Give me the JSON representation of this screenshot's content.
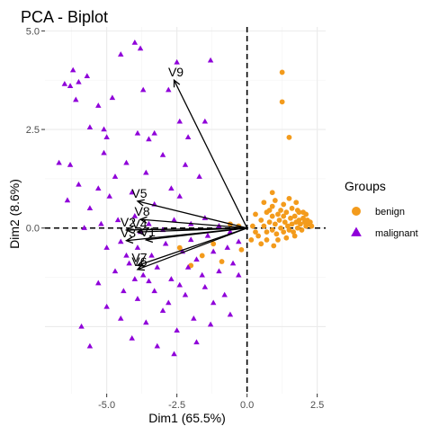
{
  "chart_data": {
    "type": "scatter",
    "title": "PCA - Biplot",
    "xlabel": "Dim1 (65.5%)",
    "ylabel": "Dim2 (8.6%)",
    "xlim": [
      -7.2,
      2.8
    ],
    "ylim": [
      -4.2,
      5.1
    ],
    "xticks": [
      -5.0,
      -2.5,
      0.0,
      2.5
    ],
    "xtick_labels": [
      "-5.0",
      "-2.5",
      "0.0",
      "2.5"
    ],
    "yticks": [
      0.0,
      2.5,
      5.0
    ],
    "ytick_labels": [
      "0.0",
      "2.5",
      "5.0"
    ],
    "grid": true,
    "legend": {
      "title": "Groups",
      "position": "right",
      "entries": [
        {
          "label": "benign",
          "color": "#F39B1C",
          "marker": "circle"
        },
        {
          "label": "malignant",
          "color": "#8F00D9",
          "marker": "triangle"
        }
      ]
    },
    "reference_lines": {
      "x": 0,
      "y": 0,
      "style": "dashed"
    },
    "series": [
      {
        "name": "benign",
        "color": "#F39B1C",
        "marker": "circle",
        "points": [
          [
            1.25,
            3.95
          ],
          [
            1.25,
            3.2
          ],
          [
            1.5,
            2.3
          ],
          [
            0.9,
            0.3
          ],
          [
            1.1,
            0.35
          ],
          [
            1.3,
            0.6
          ],
          [
            0.6,
            0.05
          ],
          [
            0.7,
            -0.1
          ],
          [
            0.8,
            0.15
          ],
          [
            0.9,
            -0.05
          ],
          [
            1.0,
            0.1
          ],
          [
            1.05,
            -0.15
          ],
          [
            1.15,
            0.2
          ],
          [
            1.2,
            0.0
          ],
          [
            1.3,
            -0.1
          ],
          [
            1.35,
            0.15
          ],
          [
            1.45,
            0.05
          ],
          [
            1.5,
            -0.05
          ],
          [
            1.55,
            0.25
          ],
          [
            1.6,
            0.1
          ],
          [
            1.65,
            -0.1
          ],
          [
            1.7,
            0.3
          ],
          [
            1.75,
            0.15
          ],
          [
            1.8,
            0.0
          ],
          [
            1.85,
            0.2
          ],
          [
            1.9,
            0.1
          ],
          [
            1.95,
            -0.05
          ],
          [
            2.0,
            0.25
          ],
          [
            2.05,
            0.15
          ],
          [
            2.1,
            0.05
          ],
          [
            2.15,
            0.2
          ],
          [
            2.2,
            0.1
          ],
          [
            2.25,
            0.15
          ],
          [
            2.3,
            0.05
          ],
          [
            1.4,
            0.4
          ],
          [
            1.6,
            0.5
          ],
          [
            1.8,
            0.45
          ],
          [
            2.0,
            0.4
          ],
          [
            0.4,
            -0.2
          ],
          [
            0.5,
            0.2
          ],
          [
            0.5,
            -0.4
          ],
          [
            0.7,
            -0.3
          ],
          [
            0.3,
            -0.1
          ],
          [
            0.2,
            0.05
          ],
          [
            1.1,
            -0.3
          ],
          [
            1.4,
            -0.25
          ],
          [
            1.7,
            -0.2
          ],
          [
            0.9,
            0.55
          ],
          [
            0.7,
            0.4
          ],
          [
            1.2,
            0.45
          ],
          [
            1.0,
            0.7
          ],
          [
            0.6,
            0.65
          ],
          [
            0.9,
            0.9
          ],
          [
            1.5,
            0.75
          ],
          [
            1.75,
            0.65
          ],
          [
            0.95,
            -0.45
          ],
          [
            0.3,
            0.35
          ],
          [
            -0.2,
            -0.55
          ],
          [
            -0.3,
            0.05
          ],
          [
            -0.9,
            -0.85
          ],
          [
            -1.6,
            -0.7
          ],
          [
            -2.0,
            -0.95
          ],
          [
            -2.4,
            -0.5
          ],
          [
            -1.2,
            -0.4
          ],
          [
            -0.6,
            0.1
          ],
          [
            0.15,
            -0.3
          ],
          [
            1.3,
            0.3
          ],
          [
            1.85,
            0.4
          ],
          [
            2.1,
            0.35
          ],
          [
            0.8,
            0.45
          ]
        ]
      },
      {
        "name": "malignant",
        "color": "#8F00D9",
        "marker": "triangle",
        "points": [
          [
            -4.0,
            4.7
          ],
          [
            -3.8,
            4.55
          ],
          [
            -4.5,
            4.4
          ],
          [
            -6.2,
            4.0
          ],
          [
            -5.7,
            3.85
          ],
          [
            -6.0,
            3.7
          ],
          [
            -2.5,
            4.2
          ],
          [
            -1.3,
            4.25
          ],
          [
            -6.5,
            3.65
          ],
          [
            -6.3,
            3.6
          ],
          [
            -6.1,
            3.25
          ],
          [
            -5.3,
            3.1
          ],
          [
            -4.8,
            3.3
          ],
          [
            -3.7,
            3.5
          ],
          [
            -2.8,
            3.5
          ],
          [
            -5.6,
            2.55
          ],
          [
            -5.1,
            2.5
          ],
          [
            -2.4,
            2.7
          ],
          [
            -1.5,
            2.7
          ],
          [
            -3.9,
            2.4
          ],
          [
            -3.3,
            2.4
          ],
          [
            -2.1,
            2.3
          ],
          [
            -3.5,
            2.25
          ],
          [
            -5.0,
            2.3
          ],
          [
            -5.1,
            1.9
          ],
          [
            -4.3,
            1.65
          ],
          [
            -3.0,
            1.85
          ],
          [
            -2.2,
            1.6
          ],
          [
            -6.3,
            1.6
          ],
          [
            -6.7,
            1.65
          ],
          [
            -6.0,
            1.1
          ],
          [
            -5.3,
            1.0
          ],
          [
            -4.7,
            1.3
          ],
          [
            -3.6,
            1.4
          ],
          [
            -2.7,
            1.0
          ],
          [
            -1.7,
            1.3
          ],
          [
            -6.4,
            0.7
          ],
          [
            -5.6,
            0.5
          ],
          [
            -4.9,
            0.8
          ],
          [
            -4.1,
            0.9
          ],
          [
            -3.3,
            0.6
          ],
          [
            -2.4,
            0.8
          ],
          [
            -5.8,
            0.0
          ],
          [
            -5.2,
            0.1
          ],
          [
            -4.6,
            0.2
          ],
          [
            -4.0,
            0.3
          ],
          [
            -3.5,
            0.1
          ],
          [
            -3.0,
            -0.05
          ],
          [
            -2.6,
            0.2
          ],
          [
            -2.0,
            0.1
          ],
          [
            -1.5,
            0.25
          ],
          [
            -1.0,
            0.05
          ],
          [
            -0.6,
            -0.1
          ],
          [
            -5.0,
            -0.5
          ],
          [
            -4.5,
            -0.35
          ],
          [
            -3.9,
            -0.5
          ],
          [
            -3.4,
            -0.7
          ],
          [
            -2.9,
            -0.4
          ],
          [
            -2.3,
            -0.6
          ],
          [
            -1.8,
            -0.8
          ],
          [
            -1.2,
            -0.6
          ],
          [
            -0.7,
            -0.5
          ],
          [
            -0.3,
            -0.35
          ],
          [
            -4.7,
            -1.1
          ],
          [
            -4.2,
            -0.9
          ],
          [
            -3.7,
            -1.2
          ],
          [
            -3.2,
            -1.0
          ],
          [
            -2.7,
            -1.3
          ],
          [
            -2.1,
            -1.0
          ],
          [
            -1.6,
            -1.2
          ],
          [
            -1.0,
            -1.1
          ],
          [
            -0.5,
            -0.9
          ],
          [
            -5.3,
            -1.4
          ],
          [
            -4.4,
            -1.6
          ],
          [
            -3.9,
            -1.8
          ],
          [
            -3.3,
            -1.6
          ],
          [
            -2.8,
            -1.9
          ],
          [
            -2.2,
            -1.7
          ],
          [
            -1.5,
            -1.5
          ],
          [
            -5.0,
            -2.0
          ],
          [
            -4.5,
            -2.3
          ],
          [
            -3.6,
            -2.4
          ],
          [
            -3.0,
            -2.1
          ],
          [
            -2.5,
            -2.6
          ],
          [
            -1.9,
            -2.3
          ],
          [
            -1.2,
            -1.9
          ],
          [
            -4.1,
            -2.8
          ],
          [
            -3.2,
            -3.0
          ],
          [
            -2.6,
            -3.2
          ],
          [
            -1.8,
            -2.9
          ],
          [
            -5.9,
            -2.5
          ],
          [
            -4.0,
            -1.3
          ],
          [
            -3.5,
            -1.35
          ],
          [
            -2.4,
            -1.45
          ],
          [
            -1.3,
            -2.45
          ],
          [
            -0.8,
            -1.7
          ],
          [
            -0.3,
            -1.2
          ],
          [
            -0.6,
            -2.2
          ],
          [
            -5.6,
            -3.0
          ],
          [
            -3.8,
            -0.1
          ],
          [
            -4.3,
            -0.7
          ],
          [
            -2.0,
            -0.3
          ],
          [
            -1.4,
            -0.2
          ]
        ]
      }
    ],
    "variables": [
      {
        "label": "V9",
        "x": -2.6,
        "y": 3.75
      },
      {
        "label": "V5",
        "x": -3.9,
        "y": 0.68
      },
      {
        "label": "V8",
        "x": -3.8,
        "y": 0.22
      },
      {
        "label": "V2",
        "x": -4.3,
        "y": -0.05
      },
      {
        "label": "V3",
        "x": -4.3,
        "y": -0.32
      },
      {
        "label": "V4",
        "x": -3.9,
        "y": -0.1
      },
      {
        "label": "V1",
        "x": -3.6,
        "y": -0.3
      },
      {
        "label": "V7",
        "x": -3.9,
        "y": -0.95
      },
      {
        "label": "V6",
        "x": -3.9,
        "y": -1.05
      }
    ]
  }
}
